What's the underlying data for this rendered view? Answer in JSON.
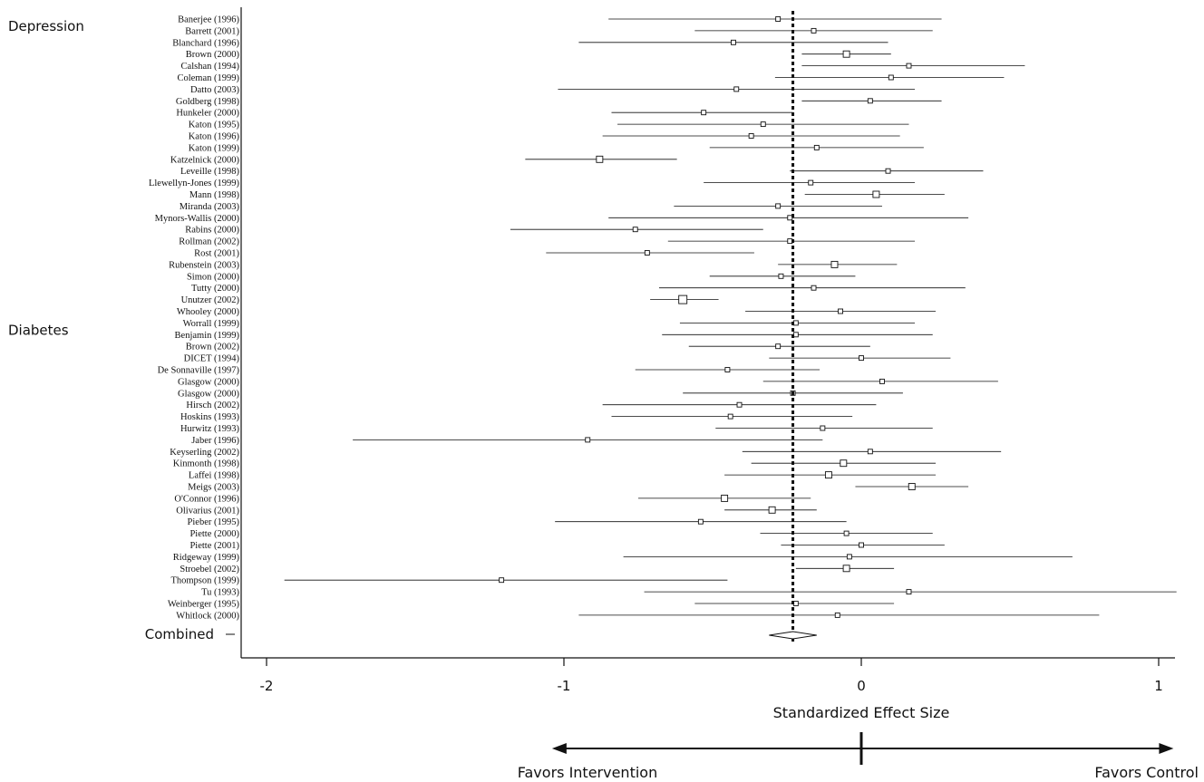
{
  "chart_data": {
    "type": "forest",
    "xlabel": "Standardized Effect Size",
    "xlim": [
      -2.08,
      1.12
    ],
    "xticks": [
      -2,
      -1,
      0,
      1
    ],
    "xtick_labels": [
      "-2",
      "-1",
      "0",
      "1"
    ],
    "pooled_estimate": -0.23,
    "combined": {
      "label": "Combined",
      "est": -0.23,
      "lo": -0.31,
      "hi": -0.15
    },
    "groups": [
      {
        "label": "Depression",
        "first_index": 0
      },
      {
        "label": "Diabetes",
        "first_index": 26
      }
    ],
    "direction_labels": {
      "left": "Favors Intervention",
      "right": "Favors Control"
    },
    "studies": [
      {
        "label": "Banerjee (1996)",
        "est": -0.28,
        "lo": -0.85,
        "hi": 0.27,
        "weight": 1
      },
      {
        "label": "Barrett (2001)",
        "est": -0.16,
        "lo": -0.56,
        "hi": 0.24,
        "weight": 1
      },
      {
        "label": "Blanchard (1996)",
        "est": -0.43,
        "lo": -0.95,
        "hi": 0.09,
        "weight": 1
      },
      {
        "label": "Brown (2000)",
        "est": -0.05,
        "lo": -0.2,
        "hi": 0.1,
        "weight": 2
      },
      {
        "label": "Calshan (1994)",
        "est": 0.16,
        "lo": -0.2,
        "hi": 0.55,
        "weight": 1
      },
      {
        "label": "Coleman (1999)",
        "est": 0.1,
        "lo": -0.29,
        "hi": 0.48,
        "weight": 1
      },
      {
        "label": "Datto (2003)",
        "est": -0.42,
        "lo": -1.02,
        "hi": 0.18,
        "weight": 1
      },
      {
        "label": "Goldberg (1998)",
        "est": 0.03,
        "lo": -0.2,
        "hi": 0.27,
        "weight": 1
      },
      {
        "label": "Hunkeler (2000)",
        "est": -0.53,
        "lo": -0.84,
        "hi": -0.23,
        "weight": 1
      },
      {
        "label": "Katon (1995)",
        "est": -0.33,
        "lo": -0.82,
        "hi": 0.16,
        "weight": 1
      },
      {
        "label": "Katon (1996)",
        "est": -0.37,
        "lo": -0.87,
        "hi": 0.13,
        "weight": 1
      },
      {
        "label": "Katon (1999)",
        "est": -0.15,
        "lo": -0.51,
        "hi": 0.21,
        "weight": 1
      },
      {
        "label": "Katzelnick (2000)",
        "est": -0.88,
        "lo": -1.13,
        "hi": -0.62,
        "weight": 2
      },
      {
        "label": "Leveille (1998)",
        "est": 0.09,
        "lo": -0.24,
        "hi": 0.41,
        "weight": 1
      },
      {
        "label": "Llewellyn-Jones (1999)",
        "est": -0.17,
        "lo": -0.53,
        "hi": 0.18,
        "weight": 1
      },
      {
        "label": "Mann (1998)",
        "est": 0.05,
        "lo": -0.19,
        "hi": 0.28,
        "weight": 2
      },
      {
        "label": "Miranda (2003)",
        "est": -0.28,
        "lo": -0.63,
        "hi": 0.07,
        "weight": 1
      },
      {
        "label": "Mynors-Wallis (2000)",
        "est": -0.24,
        "lo": -0.85,
        "hi": 0.36,
        "weight": 1
      },
      {
        "label": "Rabins (2000)",
        "est": -0.76,
        "lo": -1.18,
        "hi": -0.33,
        "weight": 1
      },
      {
        "label": "Rollman (2002)",
        "est": -0.24,
        "lo": -0.65,
        "hi": 0.18,
        "weight": 1
      },
      {
        "label": "Rost (2001)",
        "est": -0.72,
        "lo": -1.06,
        "hi": -0.36,
        "weight": 1
      },
      {
        "label": "Rubenstein (2003)",
        "est": -0.09,
        "lo": -0.28,
        "hi": 0.12,
        "weight": 2
      },
      {
        "label": "Simon (2000)",
        "est": -0.27,
        "lo": -0.51,
        "hi": -0.02,
        "weight": 1
      },
      {
        "label": "Tutty (2000)",
        "est": -0.16,
        "lo": -0.68,
        "hi": 0.35,
        "weight": 1
      },
      {
        "label": "Unutzer (2002)",
        "est": -0.6,
        "lo": -0.71,
        "hi": -0.48,
        "weight": 3
      },
      {
        "label": "Whooley (2000)",
        "est": -0.07,
        "lo": -0.39,
        "hi": 0.25,
        "weight": 1
      },
      {
        "label": "Worrall (1999)",
        "est": -0.22,
        "lo": -0.61,
        "hi": 0.18,
        "weight": 1
      },
      {
        "label": "Benjamin (1999)",
        "est": -0.22,
        "lo": -0.67,
        "hi": 0.24,
        "weight": 1
      },
      {
        "label": "Brown (2002)",
        "est": -0.28,
        "lo": -0.58,
        "hi": 0.03,
        "weight": 1
      },
      {
        "label": "DICET (1994)",
        "est": 0.0,
        "lo": -0.31,
        "hi": 0.3,
        "weight": 1
      },
      {
        "label": "De Sonnaville (1997)",
        "est": -0.45,
        "lo": -0.76,
        "hi": -0.14,
        "weight": 1
      },
      {
        "label": "Glasgow (2000)",
        "est": 0.07,
        "lo": -0.33,
        "hi": 0.46,
        "weight": 1
      },
      {
        "label": "Glasgow (2000)",
        "est": -0.23,
        "lo": -0.6,
        "hi": 0.14,
        "weight": 1
      },
      {
        "label": "Hirsch (2002)",
        "est": -0.41,
        "lo": -0.87,
        "hi": 0.05,
        "weight": 1
      },
      {
        "label": "Hoskins (1993)",
        "est": -0.44,
        "lo": -0.84,
        "hi": -0.03,
        "weight": 1
      },
      {
        "label": "Hurwitz (1993)",
        "est": -0.13,
        "lo": -0.49,
        "hi": 0.24,
        "weight": 1
      },
      {
        "label": "Jaber (1996)",
        "est": -0.92,
        "lo": -1.71,
        "hi": -0.13,
        "weight": 1
      },
      {
        "label": "Keyserling (2002)",
        "est": 0.03,
        "lo": -0.4,
        "hi": 0.47,
        "weight": 1
      },
      {
        "label": "Kinmonth (1998)",
        "est": -0.06,
        "lo": -0.37,
        "hi": 0.25,
        "weight": 2
      },
      {
        "label": "Laffei (1998)",
        "est": -0.11,
        "lo": -0.46,
        "hi": 0.25,
        "weight": 2
      },
      {
        "label": "Meigs (2003)",
        "est": 0.17,
        "lo": -0.02,
        "hi": 0.36,
        "weight": 2
      },
      {
        "label": "O'Connor (1996)",
        "est": -0.46,
        "lo": -0.75,
        "hi": -0.17,
        "weight": 2
      },
      {
        "label": "Olivarius (2001)",
        "est": -0.3,
        "lo": -0.46,
        "hi": -0.15,
        "weight": 2
      },
      {
        "label": "Pieber (1995)",
        "est": -0.54,
        "lo": -1.03,
        "hi": -0.05,
        "weight": 1
      },
      {
        "label": "Piette (2000)",
        "est": -0.05,
        "lo": -0.34,
        "hi": 0.24,
        "weight": 1
      },
      {
        "label": "Piette (2001)",
        "est": 0.0,
        "lo": -0.27,
        "hi": 0.28,
        "weight": 1
      },
      {
        "label": "Ridgeway (1999)",
        "est": -0.04,
        "lo": -0.8,
        "hi": 0.71,
        "weight": 1
      },
      {
        "label": "Stroebel (2002)",
        "est": -0.05,
        "lo": -0.22,
        "hi": 0.11,
        "weight": 2
      },
      {
        "label": "Thompson (1999)",
        "est": -1.21,
        "lo": -1.94,
        "hi": -0.45,
        "weight": 1
      },
      {
        "label": "Tu (1993)",
        "est": 0.16,
        "lo": -0.73,
        "hi": 1.06,
        "weight": 1
      },
      {
        "label": "Weinberger (1995)",
        "est": -0.22,
        "lo": -0.56,
        "hi": 0.11,
        "weight": 1
      },
      {
        "label": "Whitlock (2000)",
        "est": -0.08,
        "lo": -0.95,
        "hi": 0.8,
        "weight": 1
      }
    ]
  }
}
